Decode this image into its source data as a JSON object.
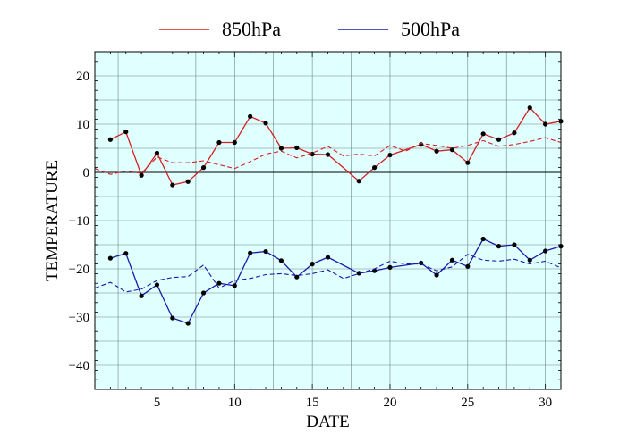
{
  "chart_data": {
    "type": "line",
    "xlabel": "DATE",
    "ylabel": "TEMPERATURE",
    "xlim": [
      1,
      31
    ],
    "ylim": [
      -45,
      25
    ],
    "x_ticks": [
      5,
      10,
      15,
      20,
      25,
      30
    ],
    "y_ticks": [
      -40,
      -30,
      -20,
      -10,
      0,
      10,
      20
    ],
    "grid": true,
    "background_color": "#e0ffff",
    "legend_position": "top-center",
    "series": [
      {
        "name": "850hPa",
        "color": "#d42020",
        "style": "solid-with-markers",
        "x": [
          2,
          3,
          4,
          5,
          6,
          7,
          8,
          9,
          10,
          11,
          12,
          13,
          14,
          15,
          16,
          18,
          19,
          20,
          22,
          23,
          24,
          25,
          26,
          27,
          28,
          29,
          30,
          31
        ],
        "values": [
          6.8,
          8.4,
          -0.6,
          4.0,
          -2.6,
          -1.9,
          1.0,
          6.2,
          6.2,
          11.6,
          10.2,
          5.0,
          5.1,
          3.8,
          3.7,
          -1.8,
          1.0,
          3.6,
          5.8,
          4.4,
          4.7,
          2.0,
          8.0,
          6.8,
          8.2,
          13.4,
          10.0,
          10.6
        ]
      },
      {
        "name": "",
        "color": "#d42020",
        "style": "dashed",
        "x": [
          1,
          2,
          3,
          4,
          5,
          6,
          7,
          8,
          9,
          10,
          11,
          12,
          13,
          14,
          15,
          16,
          17,
          18,
          19,
          20,
          21,
          22,
          23,
          24,
          25,
          26,
          27,
          28,
          29,
          30,
          31
        ],
        "values": [
          0.8,
          -0.4,
          0.3,
          -0.2,
          3.2,
          2.0,
          2.0,
          2.4,
          1.6,
          0.8,
          2.2,
          3.8,
          4.4,
          3.0,
          4.0,
          5.4,
          3.4,
          3.8,
          3.4,
          5.6,
          4.4,
          6.0,
          5.6,
          5.0,
          5.6,
          6.6,
          5.4,
          5.8,
          6.4,
          7.2,
          6.2
        ]
      },
      {
        "name": "500hPa",
        "color": "#1a1aa8",
        "style": "solid-with-markers",
        "x": [
          2,
          3,
          4,
          5,
          6,
          7,
          8,
          9,
          10,
          11,
          12,
          13,
          14,
          15,
          16,
          18,
          19,
          20,
          22,
          23,
          24,
          25,
          26,
          27,
          28,
          29,
          30,
          31
        ],
        "values": [
          -17.8,
          -16.8,
          -25.6,
          -23.3,
          -30.2,
          -31.3,
          -25.0,
          -23.0,
          -23.5,
          -16.7,
          -16.4,
          -18.3,
          -21.7,
          -19.0,
          -17.6,
          -20.9,
          -20.4,
          -19.7,
          -18.8,
          -21.3,
          -18.2,
          -19.5,
          -13.8,
          -15.3,
          -15.0,
          -18.2,
          -16.3,
          -15.3
        ]
      },
      {
        "name": "",
        "color": "#1a1aa8",
        "style": "dashed",
        "x": [
          1,
          2,
          3,
          4,
          5,
          6,
          7,
          8,
          9,
          10,
          11,
          12,
          13,
          14,
          15,
          16,
          17,
          18,
          19,
          20,
          21,
          22,
          23,
          24,
          25,
          26,
          27,
          28,
          29,
          30,
          31
        ],
        "values": [
          -24.0,
          -22.8,
          -24.8,
          -24.2,
          -22.4,
          -21.8,
          -21.6,
          -19.2,
          -24.0,
          -22.4,
          -22.0,
          -21.2,
          -21.0,
          -21.4,
          -21.0,
          -20.2,
          -22.0,
          -21.0,
          -20.0,
          -18.4,
          -19.0,
          -19.0,
          -20.4,
          -19.6,
          -17.0,
          -18.2,
          -18.4,
          -18.0,
          -19.0,
          -18.4,
          -19.8
        ]
      }
    ]
  }
}
